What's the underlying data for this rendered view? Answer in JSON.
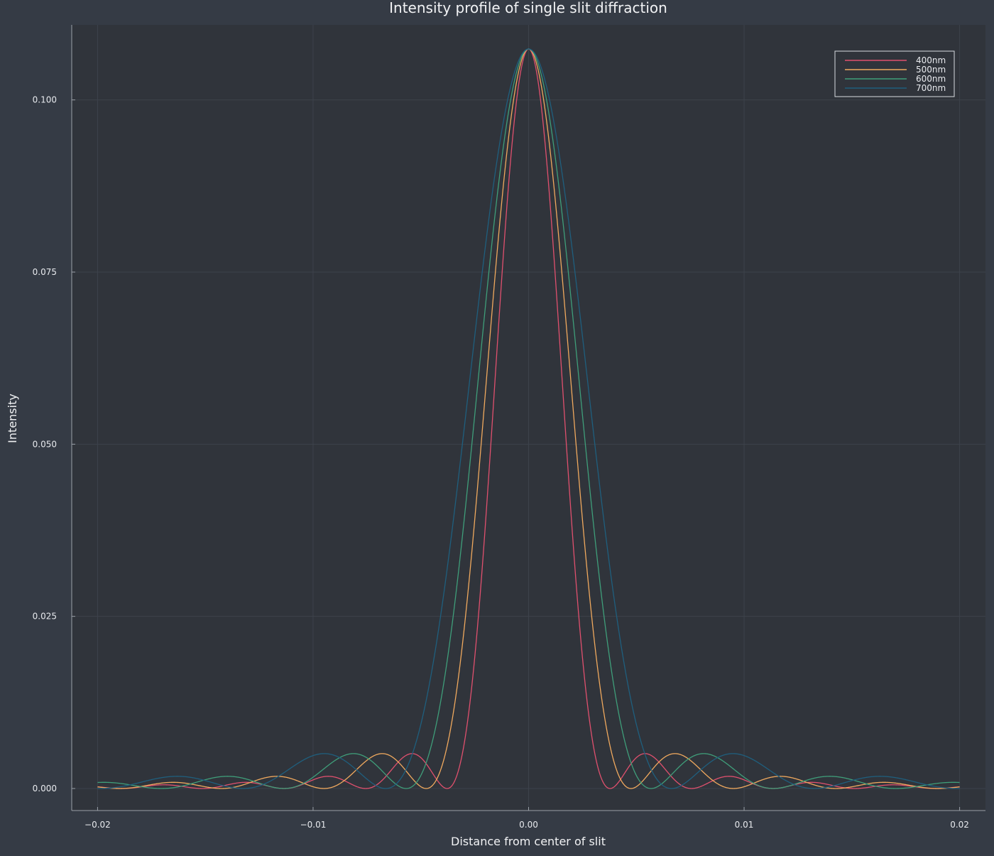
{
  "chart_data": {
    "type": "line",
    "title": "Intensity profile of single slit diffraction",
    "xlabel": "Distance from center of slit",
    "ylabel": "Intensity",
    "xlim": [
      -0.0212,
      0.0212
    ],
    "ylim": [
      -0.0032,
      0.1109
    ],
    "x_ticks": [
      -0.02,
      -0.01,
      0.0,
      0.01,
      0.02
    ],
    "x_tick_labels": [
      "−0.02",
      "−0.01",
      "0.00",
      "0.01",
      "0.02"
    ],
    "y_ticks": [
      0.0,
      0.025,
      0.05,
      0.075,
      0.1
    ],
    "y_tick_labels": [
      "0.000",
      "0.025",
      "0.050",
      "0.075",
      "0.100"
    ],
    "grid": true,
    "legend_position": "top-right",
    "x_range": [
      -0.02,
      0.02
    ],
    "peak_intensity": 0.1074,
    "series": [
      {
        "name": "400nm",
        "color": "#e0506e",
        "first_minimum": 0.00378
      },
      {
        "name": "500nm",
        "color": "#f0a95e",
        "first_minimum": 0.00475
      },
      {
        "name": "600nm",
        "color": "#3f9e7a",
        "first_minimum": 0.00568
      },
      {
        "name": "700nm",
        "color": "#1f5f7e",
        "first_minimum": 0.00663
      }
    ]
  },
  "colors": {
    "background": "#353b45",
    "plot_area": "#30343b",
    "axis": "#9aa0a8",
    "grid": "#3d424b",
    "text": "#f2f3f5"
  }
}
